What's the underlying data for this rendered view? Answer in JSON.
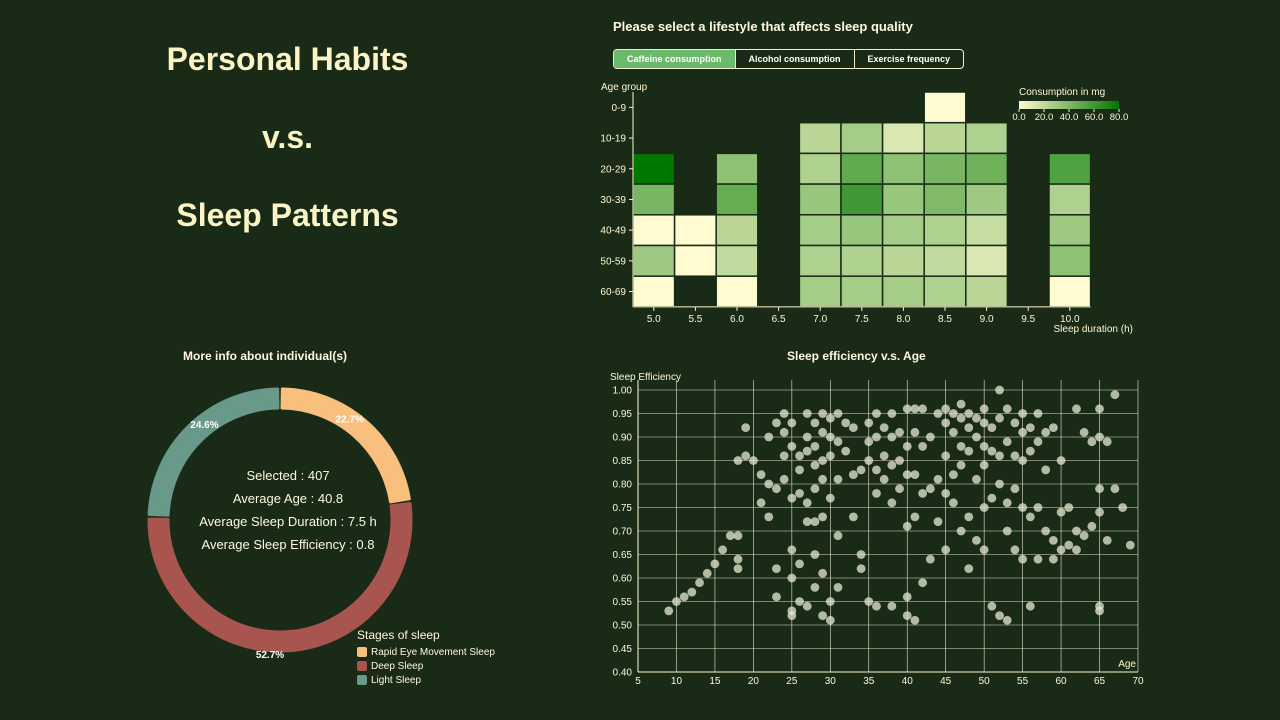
{
  "title": {
    "line1": "Personal Habits",
    "line2": "v.s.",
    "line3": "Sleep Patterns"
  },
  "heatmap": {
    "heading": "Please select a lifestyle that affects sleep quality",
    "tabs": [
      {
        "label": "Caffeine consumption",
        "active": true
      },
      {
        "label": "Alcohol consumption",
        "active": false
      },
      {
        "label": "Exercise frequency",
        "active": false
      }
    ],
    "y_title": "Age group",
    "x_title": "Sleep duration (h)",
    "legend_title": "Consumption in mg",
    "legend_ticks": [
      "0.0",
      "20.0",
      "40.0",
      "60.0",
      "80.0"
    ],
    "legend_max": 80
  },
  "donut": {
    "title": "More info about individual(s)",
    "selected": "Selected : 407",
    "avg_age": "Average Age : 40.8",
    "avg_duration": "Average Sleep Duration : 7.5 h",
    "avg_efficiency": "Average Sleep Efficiency : 0.8",
    "legend_title": "Stages of sleep",
    "slices": [
      {
        "name": "Rapid Eye Movement Sleep",
        "value": 22.7,
        "label": "22.7%",
        "color": "#f9bf7c"
      },
      {
        "name": "Deep Sleep",
        "value": 52.7,
        "label": "52.7%",
        "color": "#a8544f"
      },
      {
        "name": "Light Sleep",
        "value": 24.6,
        "label": "24.6%",
        "color": "#69998a"
      }
    ]
  },
  "scatter": {
    "title": "Sleep efficiency v.s. Age"
  },
  "chart_data": [
    {
      "type": "heatmap",
      "title": "Please select a lifestyle that affects sleep quality",
      "xlabel": "Sleep duration (h)",
      "ylabel": "Age group",
      "x_categories": [
        "5.0",
        "5.5",
        "6.0",
        "6.5",
        "7.0",
        "7.5",
        "8.0",
        "8.5",
        "9.0",
        "9.5",
        "10.0"
      ],
      "y_categories": [
        "0-9",
        "10-19",
        "20-29",
        "30-39",
        "40-49",
        "50-59",
        "60-69"
      ],
      "value_range": [
        0,
        80
      ],
      "values": [
        [
          null,
          null,
          null,
          null,
          null,
          null,
          null,
          0,
          null,
          null,
          null
        ],
        [
          null,
          null,
          null,
          null,
          22,
          28,
          12,
          22,
          25,
          null,
          null
        ],
        [
          80,
          null,
          35,
          null,
          25,
          50,
          35,
          42,
          45,
          null,
          55
        ],
        [
          42,
          null,
          48,
          null,
          32,
          60,
          32,
          40,
          30,
          null,
          25
        ],
        [
          0,
          0,
          22,
          null,
          28,
          32,
          28,
          25,
          18,
          null,
          30
        ],
        [
          30,
          0,
          20,
          null,
          25,
          25,
          22,
          20,
          12,
          null,
          35
        ],
        [
          0,
          null,
          0,
          null,
          28,
          28,
          28,
          25,
          22,
          null,
          0
        ]
      ]
    },
    {
      "type": "pie",
      "title": "More info about individual(s)",
      "categories": [
        "Rapid Eye Movement Sleep",
        "Deep Sleep",
        "Light Sleep"
      ],
      "values": [
        22.7,
        52.7,
        24.6
      ]
    },
    {
      "type": "scatter",
      "title": "Sleep efficiency v.s. Age",
      "xlabel": "Age",
      "ylabel": "Sleep Efficiency",
      "xlim": [
        5,
        70
      ],
      "ylim": [
        0.4,
        1.0
      ],
      "xticks": [
        "5",
        "10",
        "15",
        "20",
        "25",
        "30",
        "35",
        "40",
        "45",
        "50",
        "55",
        "60",
        "65",
        "70"
      ],
      "yticks": [
        "0.40",
        "0.45",
        "0.50",
        "0.55",
        "0.60",
        "0.65",
        "0.70",
        "0.75",
        "0.80",
        "0.85",
        "0.90",
        "0.95",
        "1.00"
      ],
      "grid": true,
      "points": [
        [
          9,
          0.53
        ],
        [
          10,
          0.55
        ],
        [
          11,
          0.56
        ],
        [
          12,
          0.57
        ],
        [
          13,
          0.59
        ],
        [
          14,
          0.61
        ],
        [
          15,
          0.63
        ],
        [
          16,
          0.66
        ],
        [
          17,
          0.69
        ],
        [
          18,
          0.69
        ],
        [
          18,
          0.64
        ],
        [
          18,
          0.62
        ],
        [
          18,
          0.85
        ],
        [
          19,
          0.86
        ],
        [
          19,
          0.92
        ],
        [
          20,
          0.85
        ],
        [
          21,
          0.82
        ],
        [
          21,
          0.76
        ],
        [
          22,
          0.8
        ],
        [
          22,
          0.73
        ],
        [
          23,
          0.79
        ],
        [
          23,
          0.93
        ],
        [
          22,
          0.9
        ],
        [
          23,
          0.62
        ],
        [
          23,
          0.56
        ],
        [
          24,
          0.86
        ],
        [
          24,
          0.81
        ],
        [
          24,
          0.95
        ],
        [
          24,
          0.91
        ],
        [
          25,
          0.93
        ],
        [
          25,
          0.88
        ],
        [
          25,
          0.77
        ],
        [
          25,
          0.66
        ],
        [
          25,
          0.6
        ],
        [
          25,
          0.53
        ],
        [
          25,
          0.52
        ],
        [
          26,
          0.86
        ],
        [
          26,
          0.83
        ],
        [
          26,
          0.78
        ],
        [
          26,
          0.63
        ],
        [
          26,
          0.55
        ],
        [
          27,
          0.95
        ],
        [
          27,
          0.9
        ],
        [
          27,
          0.87
        ],
        [
          27,
          0.76
        ],
        [
          27,
          0.72
        ],
        [
          27,
          0.54
        ],
        [
          28,
          0.93
        ],
        [
          28,
          0.88
        ],
        [
          28,
          0.84
        ],
        [
          28,
          0.79
        ],
        [
          28,
          0.72
        ],
        [
          28,
          0.65
        ],
        [
          28,
          0.58
        ],
        [
          29,
          0.95
        ],
        [
          29,
          0.91
        ],
        [
          29,
          0.85
        ],
        [
          29,
          0.81
        ],
        [
          29,
          0.73
        ],
        [
          29,
          0.61
        ],
        [
          29,
          0.52
        ],
        [
          30,
          0.94
        ],
        [
          30,
          0.9
        ],
        [
          30,
          0.86
        ],
        [
          30,
          0.77
        ],
        [
          30,
          0.55
        ],
        [
          30,
          0.51
        ],
        [
          31,
          0.95
        ],
        [
          31,
          0.89
        ],
        [
          31,
          0.81
        ],
        [
          31,
          0.69
        ],
        [
          31,
          0.58
        ],
        [
          32,
          0.93
        ],
        [
          32,
          0.87
        ],
        [
          33,
          0.92
        ],
        [
          33,
          0.82
        ],
        [
          33,
          0.73
        ],
        [
          34,
          0.83
        ],
        [
          34,
          0.65
        ],
        [
          34,
          0.62
        ],
        [
          35,
          0.93
        ],
        [
          35,
          0.89
        ],
        [
          35,
          0.85
        ],
        [
          35,
          0.55
        ],
        [
          36,
          0.95
        ],
        [
          36,
          0.9
        ],
        [
          36,
          0.83
        ],
        [
          36,
          0.78
        ],
        [
          36,
          0.54
        ],
        [
          37,
          0.92
        ],
        [
          37,
          0.86
        ],
        [
          37,
          0.81
        ],
        [
          38,
          0.95
        ],
        [
          38,
          0.9
        ],
        [
          38,
          0.84
        ],
        [
          38,
          0.76
        ],
        [
          38,
          0.54
        ],
        [
          39,
          0.91
        ],
        [
          39,
          0.85
        ],
        [
          39,
          0.79
        ],
        [
          40,
          0.96
        ],
        [
          40,
          0.88
        ],
        [
          40,
          0.82
        ],
        [
          40,
          0.71
        ],
        [
          40,
          0.56
        ],
        [
          40,
          0.52
        ],
        [
          41,
          0.96
        ],
        [
          41,
          0.91
        ],
        [
          41,
          0.82
        ],
        [
          41,
          0.73
        ],
        [
          41,
          0.51
        ],
        [
          42,
          0.96
        ],
        [
          42,
          0.88
        ],
        [
          42,
          0.78
        ],
        [
          42,
          0.59
        ],
        [
          43,
          0.9
        ],
        [
          43,
          0.79
        ],
        [
          43,
          0.64
        ],
        [
          44,
          0.95
        ],
        [
          44,
          0.81
        ],
        [
          44,
          0.72
        ],
        [
          45,
          0.96
        ],
        [
          45,
          0.93
        ],
        [
          45,
          0.86
        ],
        [
          45,
          0.78
        ],
        [
          45,
          0.66
        ],
        [
          46,
          0.95
        ],
        [
          46,
          0.91
        ],
        [
          46,
          0.82
        ],
        [
          46,
          0.76
        ],
        [
          47,
          0.97
        ],
        [
          47,
          0.94
        ],
        [
          47,
          0.88
        ],
        [
          47,
          0.84
        ],
        [
          47,
          0.7
        ],
        [
          48,
          0.95
        ],
        [
          48,
          0.92
        ],
        [
          48,
          0.87
        ],
        [
          48,
          0.73
        ],
        [
          48,
          0.62
        ],
        [
          49,
          0.94
        ],
        [
          49,
          0.9
        ],
        [
          49,
          0.81
        ],
        [
          49,
          0.68
        ],
        [
          50,
          0.96
        ],
        [
          50,
          0.93
        ],
        [
          50,
          0.88
        ],
        [
          50,
          0.84
        ],
        [
          50,
          0.75
        ],
        [
          50,
          0.66
        ],
        [
          51,
          0.92
        ],
        [
          51,
          0.87
        ],
        [
          51,
          0.77
        ],
        [
          51,
          0.54
        ],
        [
          52,
          1.0
        ],
        [
          52,
          0.94
        ],
        [
          52,
          0.86
        ],
        [
          52,
          0.8
        ],
        [
          52,
          0.52
        ],
        [
          53,
          0.96
        ],
        [
          53,
          0.89
        ],
        [
          53,
          0.76
        ],
        [
          53,
          0.7
        ],
        [
          53,
          0.51
        ],
        [
          54,
          0.93
        ],
        [
          54,
          0.86
        ],
        [
          54,
          0.79
        ],
        [
          54,
          0.66
        ],
        [
          55,
          0.95
        ],
        [
          55,
          0.91
        ],
        [
          55,
          0.85
        ],
        [
          55,
          0.75
        ],
        [
          55,
          0.64
        ],
        [
          56,
          0.92
        ],
        [
          56,
          0.87
        ],
        [
          56,
          0.73
        ],
        [
          56,
          0.54
        ],
        [
          57,
          0.95
        ],
        [
          57,
          0.89
        ],
        [
          57,
          0.75
        ],
        [
          57,
          0.64
        ],
        [
          58,
          0.91
        ],
        [
          58,
          0.83
        ],
        [
          58,
          0.7
        ],
        [
          59,
          0.92
        ],
        [
          59,
          0.68
        ],
        [
          59,
          0.64
        ],
        [
          60,
          0.85
        ],
        [
          60,
          0.74
        ],
        [
          60,
          0.66
        ],
        [
          61,
          0.75
        ],
        [
          61,
          0.67
        ],
        [
          62,
          0.96
        ],
        [
          62,
          0.7
        ],
        [
          62,
          0.66
        ],
        [
          63,
          0.91
        ],
        [
          63,
          0.69
        ],
        [
          64,
          0.89
        ],
        [
          64,
          0.71
        ],
        [
          65,
          0.96
        ],
        [
          65,
          0.9
        ],
        [
          65,
          0.79
        ],
        [
          65,
          0.74
        ],
        [
          65,
          0.54
        ],
        [
          65,
          0.53
        ],
        [
          66,
          0.89
        ],
        [
          66,
          0.68
        ],
        [
          67,
          0.99
        ],
        [
          67,
          0.79
        ],
        [
          68,
          0.75
        ],
        [
          69,
          0.67
        ]
      ]
    }
  ]
}
